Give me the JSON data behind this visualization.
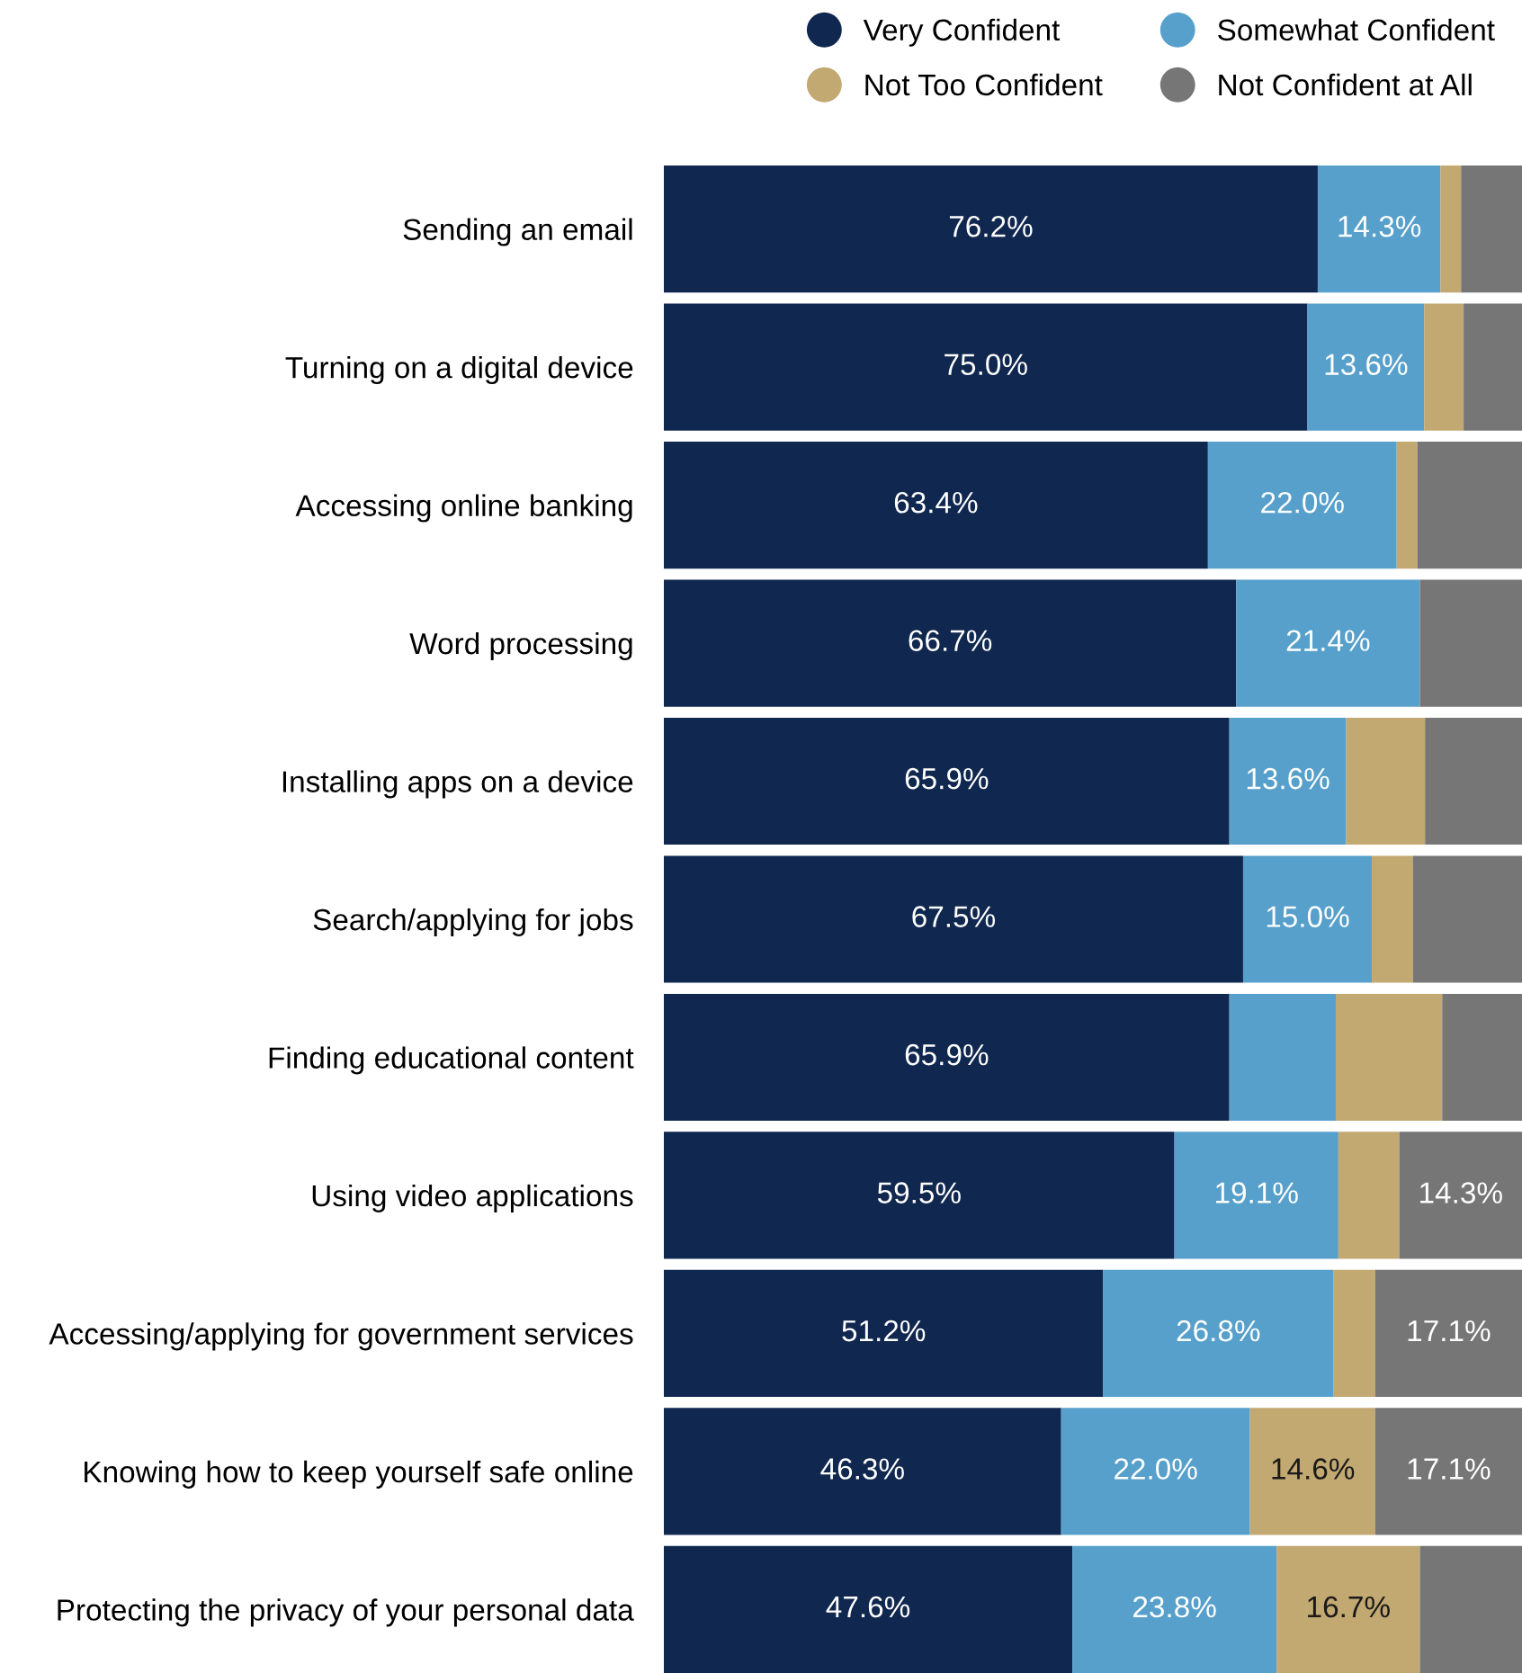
{
  "chart_data": {
    "type": "bar",
    "orientation": "horizontal",
    "stacked": true,
    "legend": "top right",
    "categories": [
      "Sending an email",
      "Turning on a digital device",
      "Accessing online banking",
      "Word processing",
      "Installing apps on a device",
      "Search/applying for jobs",
      "Finding educational content",
      "Using video applications",
      "Accessing/applying for government services",
      "Knowing how to keep yourself safe online",
      "Protecting the privacy of your personal data"
    ],
    "series": [
      {
        "name": "Very Confident",
        "color": "#10274f",
        "values": [
          76.2,
          75.0,
          63.4,
          66.7,
          65.9,
          67.5,
          65.9,
          59.5,
          51.2,
          46.3,
          47.6
        ],
        "value_labels": [
          "76.2%",
          "75.0%",
          "63.4%",
          "66.7%",
          "65.9%",
          "67.5%",
          "65.9%",
          "59.5%",
          "51.2%",
          "46.3%",
          "47.6%"
        ]
      },
      {
        "name": "Somewhat Confident",
        "color": "#57a0cb",
        "values": [
          14.3,
          13.6,
          22.0,
          21.4,
          13.6,
          15.0,
          12.4,
          19.1,
          26.8,
          22.0,
          23.8
        ],
        "value_labels": [
          "14.3%",
          "13.6%",
          "22.0%",
          "21.4%",
          "13.6%",
          "15.0%",
          null,
          "19.1%",
          "26.8%",
          "22.0%",
          "23.8%"
        ]
      },
      {
        "name": "Not Too Confident",
        "color": "#c2a871",
        "values": [
          2.4,
          4.6,
          2.4,
          0,
          9.2,
          4.8,
          12.4,
          7.1,
          4.9,
          14.6,
          16.7
        ],
        "value_labels": [
          null,
          null,
          null,
          null,
          null,
          null,
          null,
          null,
          null,
          "14.6%",
          "16.7%"
        ]
      },
      {
        "name": "Not Confident at All",
        "color": "#767676",
        "values": [
          7.1,
          6.8,
          12.2,
          11.9,
          11.3,
          12.7,
          9.3,
          14.3,
          17.1,
          17.1,
          11.9
        ],
        "value_labels": [
          null,
          null,
          null,
          null,
          null,
          null,
          null,
          "14.3%",
          "17.1%",
          "17.1%",
          null
        ]
      }
    ]
  }
}
